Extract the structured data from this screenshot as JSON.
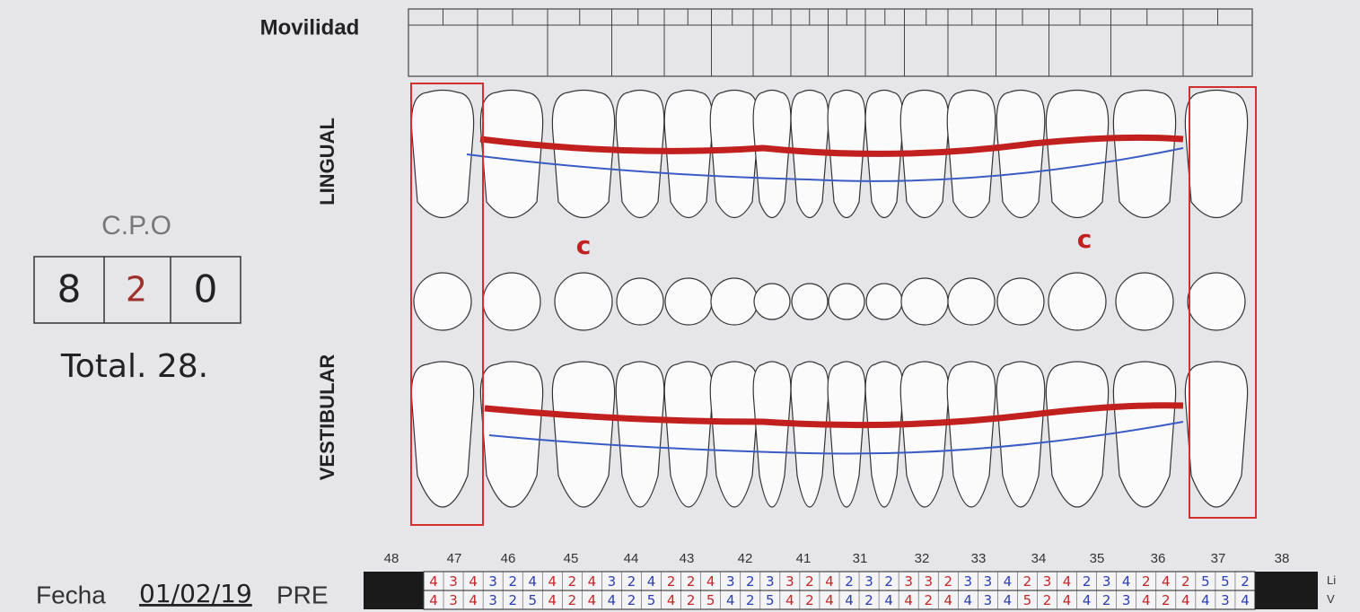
{
  "header": {
    "mobility_label": "Movilidad"
  },
  "labels": {
    "lingual": "LINGUAL",
    "vestibular": "VESTIBULAR"
  },
  "cpo": {
    "title": "C.P.O",
    "values": [
      8,
      2,
      0
    ],
    "total": "Total. 28."
  },
  "caries_marks": [
    "c",
    "c"
  ],
  "teeth": [
    48,
    47,
    46,
    45,
    44,
    43,
    42,
    41,
    31,
    32,
    33,
    34,
    35,
    36,
    37,
    38
  ],
  "probing": {
    "rows": [
      {
        "label": "Li",
        "values": [
          4,
          3,
          4,
          3,
          2,
          4,
          4,
          2,
          4,
          3,
          2,
          4,
          2,
          2,
          4,
          3,
          2,
          3,
          3,
          2,
          4,
          2,
          3,
          2,
          3,
          3,
          2,
          3,
          3,
          4,
          2,
          3,
          4,
          2,
          3,
          4,
          2,
          4,
          2,
          5,
          5,
          2
        ]
      },
      {
        "label": "V",
        "values": [
          4,
          3,
          4,
          3,
          2,
          5,
          4,
          2,
          4,
          4,
          2,
          5,
          4,
          2,
          5,
          4,
          2,
          5,
          4,
          2,
          4,
          4,
          2,
          4,
          4,
          2,
          4,
          4,
          3,
          4,
          5,
          2,
          4,
          4,
          2,
          3,
          4,
          2,
          4,
          4,
          3,
          4
        ]
      }
    ]
  },
  "date": {
    "label": "Fecha",
    "value": "01/02/19",
    "stage": "PRE"
  }
}
